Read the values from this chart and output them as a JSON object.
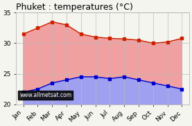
{
  "title": "Phuket : temperatures (°C)",
  "months": [
    "Jan",
    "Feb",
    "Mar",
    "Apr",
    "May",
    "Jun",
    "Jul",
    "Aug",
    "Sep",
    "Oct",
    "Nov",
    "Dec"
  ],
  "max_temps": [
    31.5,
    32.5,
    33.5,
    33.0,
    31.5,
    31.0,
    30.8,
    30.7,
    30.5,
    30.0,
    30.2,
    30.8
  ],
  "min_temps": [
    22.0,
    22.5,
    23.5,
    24.0,
    24.5,
    24.5,
    24.2,
    24.5,
    24.0,
    23.5,
    23.0,
    22.5
  ],
  "max_line_color": "#cc2200",
  "max_fill_color": "#f0a0a0",
  "min_line_color": "#0000cc",
  "min_fill_color": "#a0a0f0",
  "ylim": [
    20,
    35
  ],
  "yticks": [
    20,
    25,
    30,
    35
  ],
  "grid_color": "#bbbbbb",
  "bg_color": "#f5f5f0",
  "watermark": "www.allmetsat.com",
  "title_fontsize": 9,
  "tick_fontsize": 6.5,
  "watermark_text_color": "white",
  "watermark_bg_color": "black"
}
